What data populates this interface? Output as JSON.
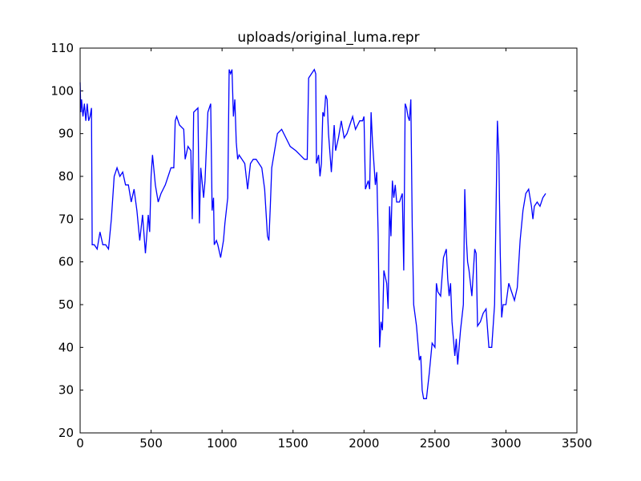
{
  "chart_data": {
    "type": "line",
    "title": "uploads/original_luma.repr",
    "color": "#0000ff",
    "x": [
      0,
      5,
      10,
      20,
      30,
      40,
      50,
      60,
      70,
      80,
      85,
      100,
      120,
      140,
      160,
      180,
      200,
      220,
      240,
      260,
      280,
      300,
      320,
      340,
      360,
      380,
      400,
      420,
      440,
      460,
      480,
      490,
      500,
      510,
      530,
      550,
      570,
      600,
      620,
      640,
      660,
      670,
      680,
      700,
      730,
      740,
      760,
      780,
      790,
      800,
      830,
      840,
      850,
      870,
      880,
      900,
      920,
      930,
      940,
      945,
      960,
      970,
      990,
      1010,
      1020,
      1040,
      1050,
      1060,
      1070,
      1080,
      1090,
      1100,
      1110,
      1120,
      1140,
      1160,
      1180,
      1200,
      1220,
      1240,
      1260,
      1280,
      1300,
      1320,
      1330,
      1340,
      1350,
      1370,
      1390,
      1420,
      1450,
      1480,
      1520,
      1550,
      1580,
      1600,
      1610,
      1630,
      1650,
      1660,
      1665,
      1680,
      1690,
      1700,
      1710,
      1720,
      1730,
      1740,
      1750,
      1770,
      1790,
      1800,
      1820,
      1840,
      1860,
      1880,
      1900,
      1920,
      1940,
      1970,
      1990,
      2000,
      2010,
      2030,
      2040,
      2050,
      2060,
      2080,
      2090,
      2100,
      2110,
      2120,
      2130,
      2140,
      2160,
      2170,
      2180,
      2190,
      2200,
      2210,
      2220,
      2230,
      2250,
      2270,
      2280,
      2290,
      2300,
      2310,
      2320,
      2330,
      2340,
      2350,
      2370,
      2390,
      2400,
      2410,
      2420,
      2440,
      2460,
      2480,
      2500,
      2510,
      2520,
      2540,
      2560,
      2580,
      2590,
      2600,
      2610,
      2620,
      2640,
      2650,
      2660,
      2680,
      2700,
      2710,
      2720,
      2730,
      2740,
      2760,
      2780,
      2790,
      2800,
      2820,
      2840,
      2860,
      2880,
      2900,
      2920,
      2940,
      2950,
      2960,
      2970,
      2980,
      3000,
      3020,
      3040,
      3060,
      3080,
      3100,
      3120,
      3140,
      3160,
      3180,
      3190,
      3200,
      3220,
      3240,
      3260,
      3280
    ],
    "values": [
      102,
      95,
      98,
      94,
      97,
      93,
      97,
      93,
      94,
      96,
      64,
      64,
      63,
      67,
      64,
      64,
      63,
      70,
      80,
      82,
      80,
      81,
      78,
      78,
      74,
      77,
      72,
      65,
      71,
      62,
      71,
      67,
      80,
      85,
      78,
      74,
      76,
      78,
      80,
      82,
      82,
      93,
      94,
      92,
      91,
      84,
      87,
      86,
      70,
      95,
      96,
      69,
      82,
      75,
      79,
      95,
      97,
      72,
      75,
      64,
      65,
      64,
      61,
      65,
      69,
      75,
      105,
      104,
      105,
      94,
      98,
      88,
      84,
      85,
      84,
      83,
      77,
      83,
      84,
      84,
      83,
      82,
      77,
      66,
      65,
      73,
      82,
      86,
      90,
      91,
      89,
      87,
      86,
      85,
      84,
      84,
      103,
      104,
      105,
      104,
      83,
      85,
      80,
      83,
      95,
      94,
      99,
      98,
      90,
      81,
      92,
      86,
      89,
      93,
      89,
      90,
      92,
      94,
      91,
      93,
      93,
      94,
      77,
      79,
      77,
      95,
      88,
      78,
      81,
      66,
      40,
      46,
      44,
      58,
      55,
      49,
      73,
      66,
      79,
      75,
      78,
      74,
      74,
      76,
      58,
      97,
      96,
      94,
      93,
      98,
      68,
      50,
      45,
      37,
      38,
      30,
      28,
      28,
      34,
      41,
      40,
      55,
      53,
      52,
      61,
      63,
      56,
      52,
      55,
      46,
      38,
      42,
      36,
      44,
      50,
      77,
      66,
      60,
      58,
      52,
      63,
      62,
      45,
      46,
      48,
      49,
      40,
      40,
      50,
      93,
      85,
      62,
      47,
      50,
      50,
      55,
      53,
      51,
      54,
      65,
      72,
      76,
      77,
      73,
      70,
      73,
      74,
      73,
      75,
      76
    ],
    "xlim": [
      0,
      3500
    ],
    "xticks": [
      0,
      500,
      1000,
      1500,
      2000,
      2500,
      3000,
      3500
    ],
    "ylim": [
      20,
      110
    ],
    "yticks": [
      20,
      30,
      40,
      50,
      60,
      70,
      80,
      90,
      100,
      110
    ]
  }
}
